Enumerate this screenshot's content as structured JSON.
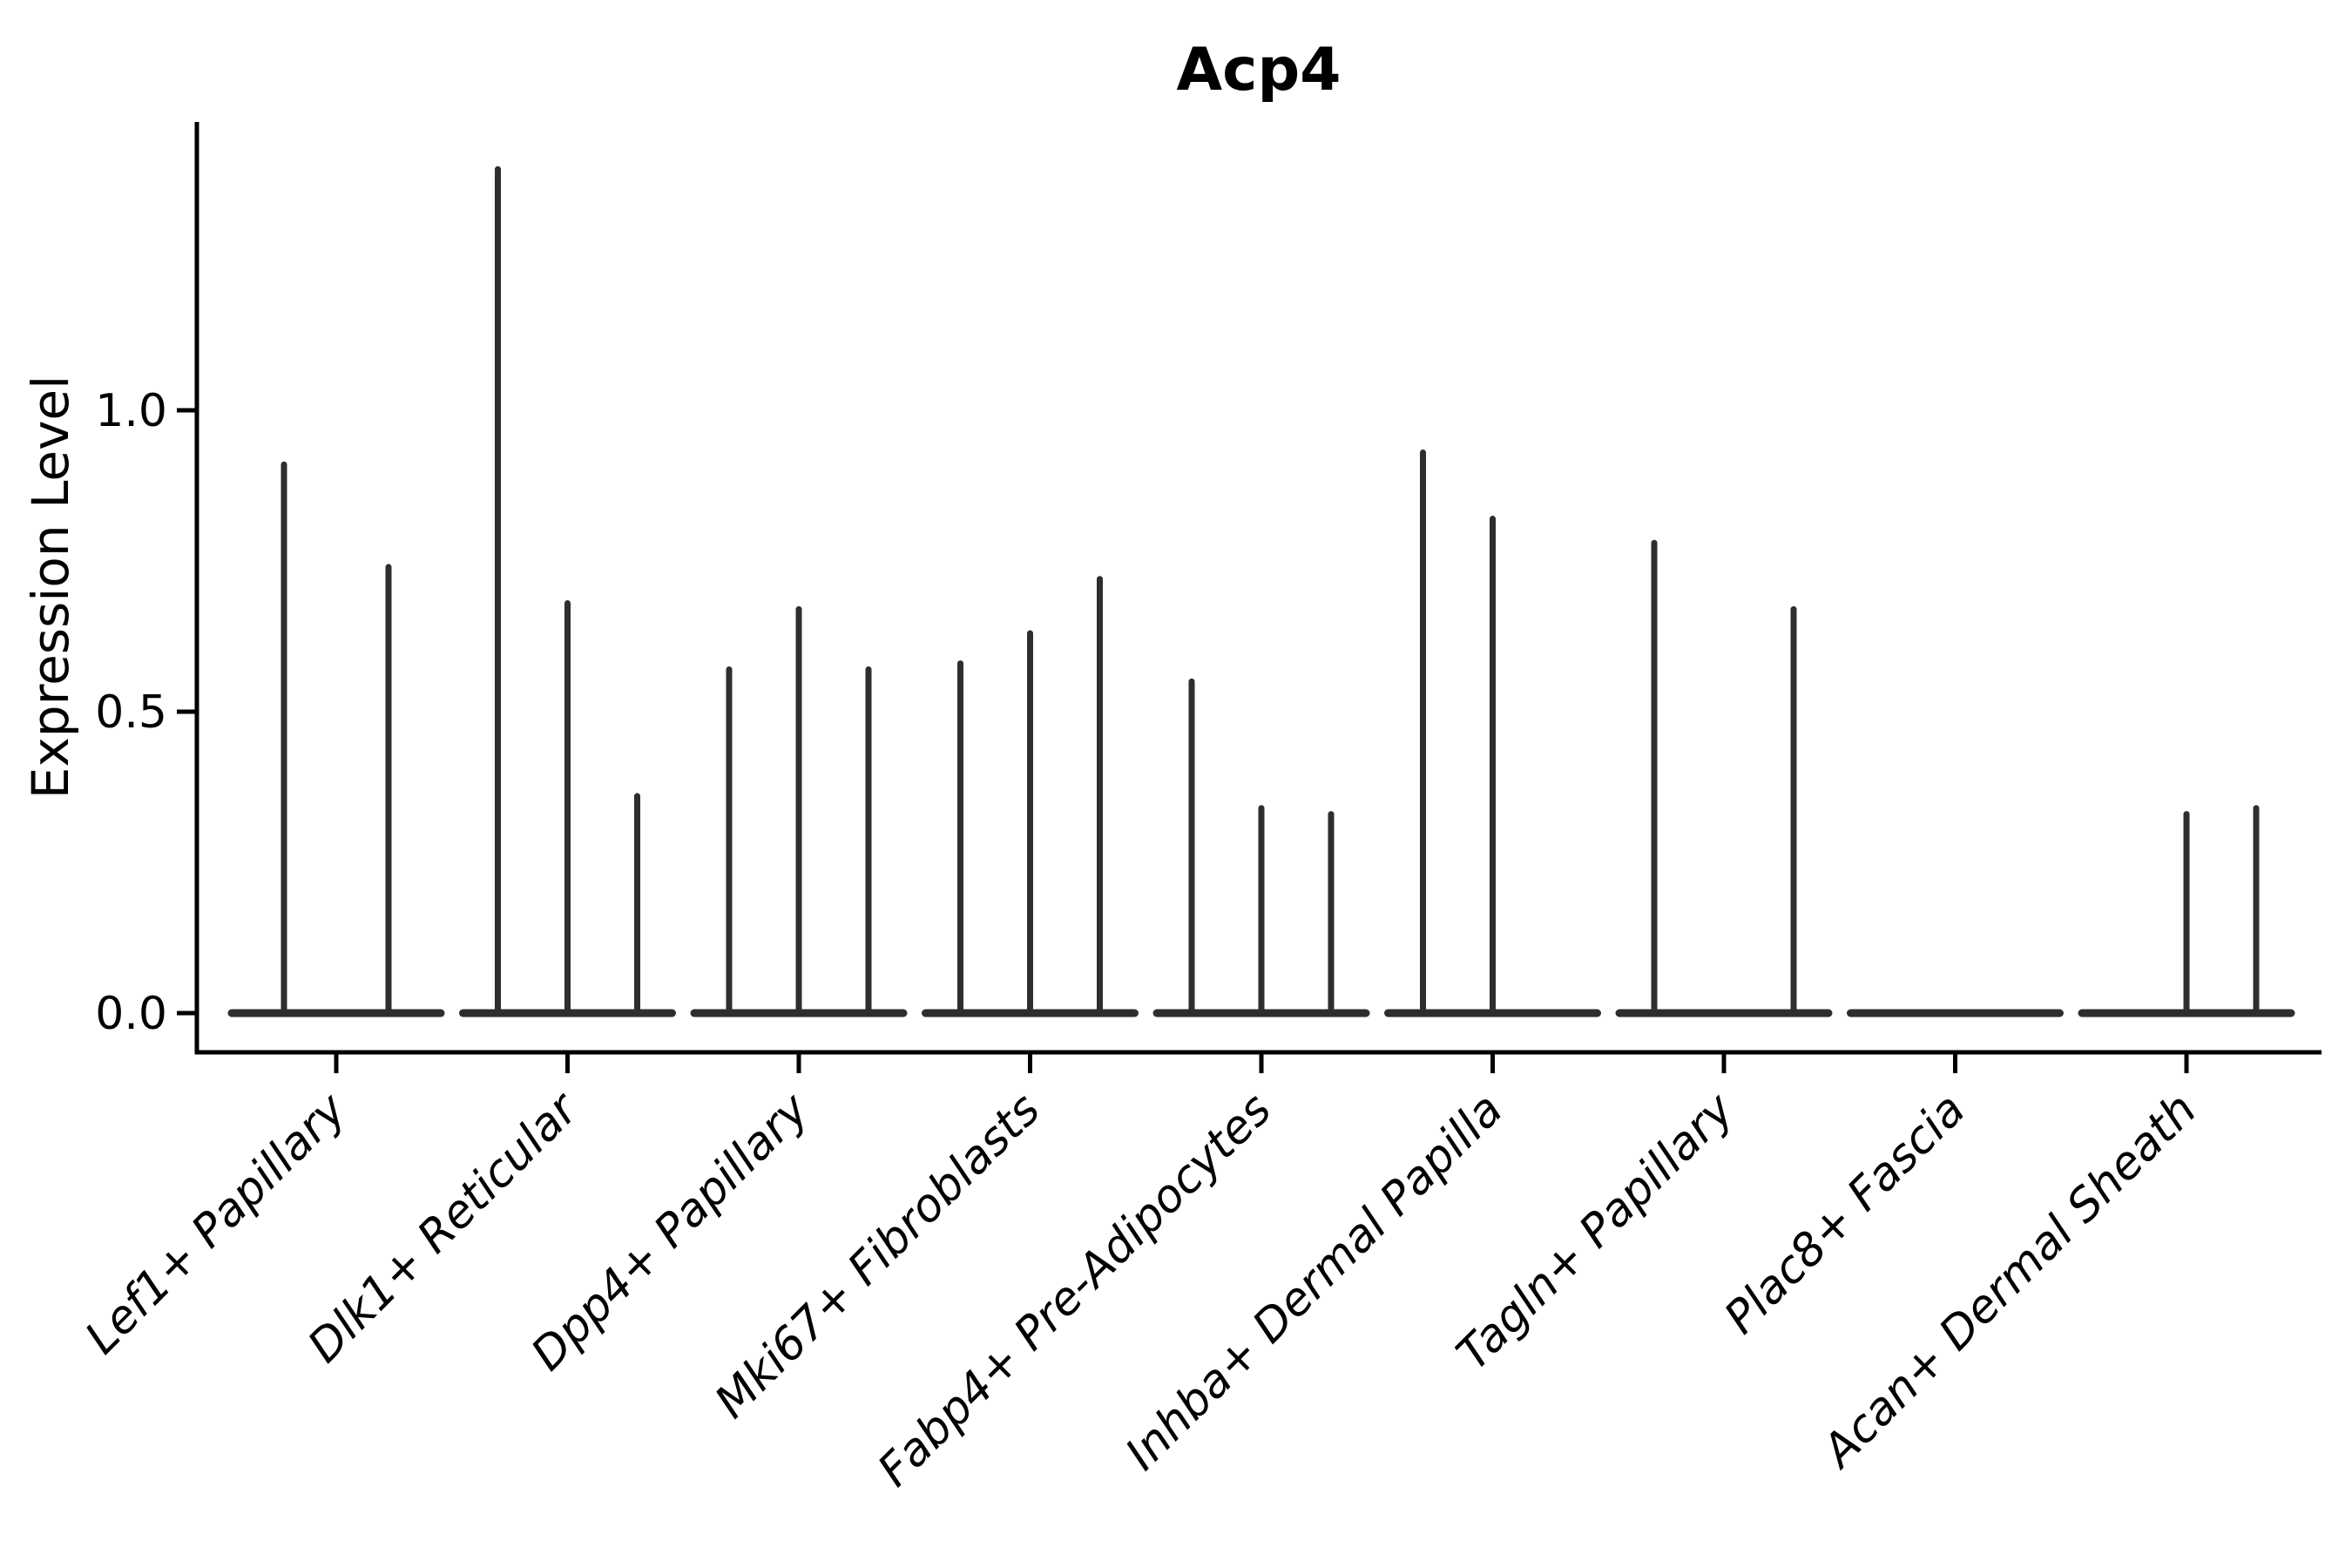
{
  "figure": {
    "title": "Acp4",
    "ylabel": "Expression Level"
  },
  "chart_data": {
    "type": "violin",
    "title": "Acp4",
    "xlabel": "",
    "ylabel": "Expression Level",
    "categories": [
      "Lef1+ Papillary",
      "Dlk1+ Reticular",
      "Dpp4+ Papillary",
      "Mki67+ Fibroblasts",
      "Fabp4+ Pre-Adipocytes",
      "Inhba+ Dermal Papilla",
      "Tagln+ Papillary",
      "Plac8+ Fascia",
      "Acan+ Dermal Sheath"
    ],
    "violins_per_category": [
      2,
      3,
      3,
      3,
      3,
      3,
      3,
      3,
      3
    ],
    "spike_max_values": [
      [
        0.91,
        0.74
      ],
      [
        1.4,
        0.68,
        0.36
      ],
      [
        0.57,
        0.67,
        0.57
      ],
      [
        0.58,
        0.63,
        0.72
      ],
      [
        0.55,
        0.34,
        0.33
      ],
      [
        0.93,
        0.82,
        0
      ],
      [
        0.78,
        0,
        0.67
      ],
      [
        0,
        0,
        0
      ],
      [
        0,
        0.33,
        0.34
      ]
    ],
    "violin_shape_note": "Each violin is a flat disk at expression 0 with a thin vertical density spike reaching its maximum expression value; violins with max 0 are flat lines only",
    "yticks": [
      {
        "label": "0.0",
        "value": 0.0
      },
      {
        "label": "0.5",
        "value": 0.5
      },
      {
        "label": "1.0",
        "value": 1.0
      }
    ],
    "ylim": [
      -0.065,
      1.48
    ],
    "grid": false,
    "legend": null,
    "xtick_rotation_deg": 45,
    "colors": {
      "violin": "#2e2e2e",
      "axis": "#000000",
      "text": "#000000",
      "background": "#ffffff"
    }
  }
}
